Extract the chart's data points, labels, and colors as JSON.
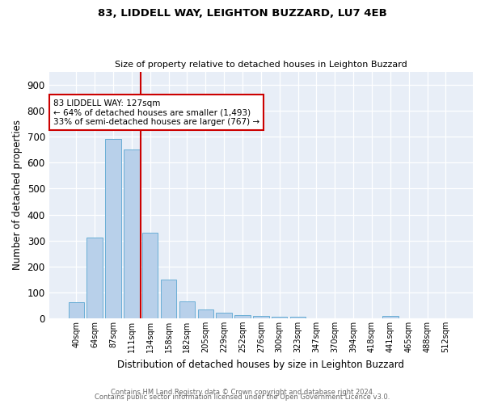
{
  "title1": "83, LIDDELL WAY, LEIGHTON BUZZARD, LU7 4EB",
  "title2": "Size of property relative to detached houses in Leighton Buzzard",
  "xlabel": "Distribution of detached houses by size in Leighton Buzzard",
  "ylabel": "Number of detached properties",
  "footnote1": "Contains HM Land Registry data © Crown copyright and database right 2024.",
  "footnote2": "Contains public sector information licensed under the Open Government Licence v3.0.",
  "bin_labels": [
    "40sqm",
    "64sqm",
    "87sqm",
    "111sqm",
    "134sqm",
    "158sqm",
    "182sqm",
    "205sqm",
    "229sqm",
    "252sqm",
    "276sqm",
    "300sqm",
    "323sqm",
    "347sqm",
    "370sqm",
    "394sqm",
    "418sqm",
    "441sqm",
    "465sqm",
    "488sqm",
    "512sqm"
  ],
  "bar_values": [
    63,
    310,
    690,
    650,
    330,
    150,
    65,
    35,
    20,
    12,
    9,
    7,
    5,
    0,
    0,
    0,
    0,
    8,
    0,
    0,
    0
  ],
  "bar_color": "#b8d0ea",
  "bar_edge_color": "#6aaed6",
  "vline_color": "#cc0000",
  "annotation_text": "83 LIDDELL WAY: 127sqm\n← 64% of detached houses are smaller (1,493)\n33% of semi-detached houses are larger (767) →",
  "annotation_box_color": "#ffffff",
  "annotation_box_edge": "#cc0000",
  "ylim": [
    0,
    950
  ],
  "yticks": [
    0,
    100,
    200,
    300,
    400,
    500,
    600,
    700,
    800,
    900
  ],
  "bg_color": "#e8eef7",
  "fig_bg_color": "#ffffff"
}
